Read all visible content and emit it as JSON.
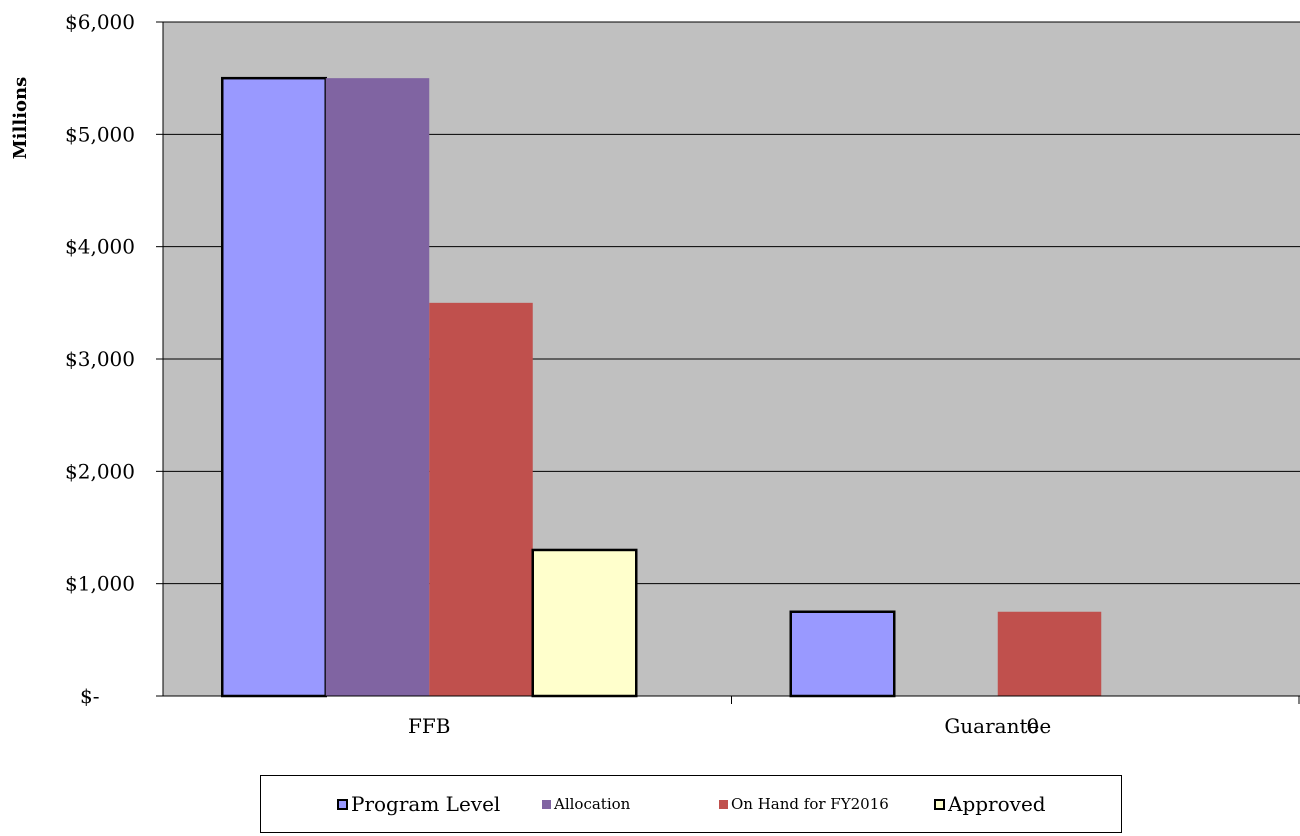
{
  "chart_data": {
    "type": "bar",
    "title": "",
    "xlabel": "",
    "ylabel": "Millions",
    "ylim": [
      0,
      6000
    ],
    "y_ticks": [
      0,
      1000,
      2000,
      3000,
      4000,
      5000,
      6000
    ],
    "y_tick_labels": [
      "$-",
      "$1,000",
      "$2,000",
      "$3,000",
      "$4,000",
      "$5,000",
      "$6,000"
    ],
    "categories": [
      "FFB",
      "Guarantee"
    ],
    "category_overlay_text": [
      "",
      "0"
    ],
    "grid": true,
    "legend_position": "bottom",
    "series": [
      {
        "name": "Program Level",
        "values": [
          5500,
          750
        ],
        "color": "#9999ff",
        "outlined": true
      },
      {
        "name": "Allocation",
        "values": [
          5500,
          0
        ],
        "color": "#8064a2",
        "outlined": false
      },
      {
        "name": "On Hand for FY2016",
        "values": [
          3500,
          750
        ],
        "color": "#c0504d",
        "outlined": false
      },
      {
        "name": "Approved",
        "values": [
          1300,
          0
        ],
        "color": "#ffffcc",
        "outlined": true
      }
    ],
    "plot_background": "#c0c0c0"
  }
}
